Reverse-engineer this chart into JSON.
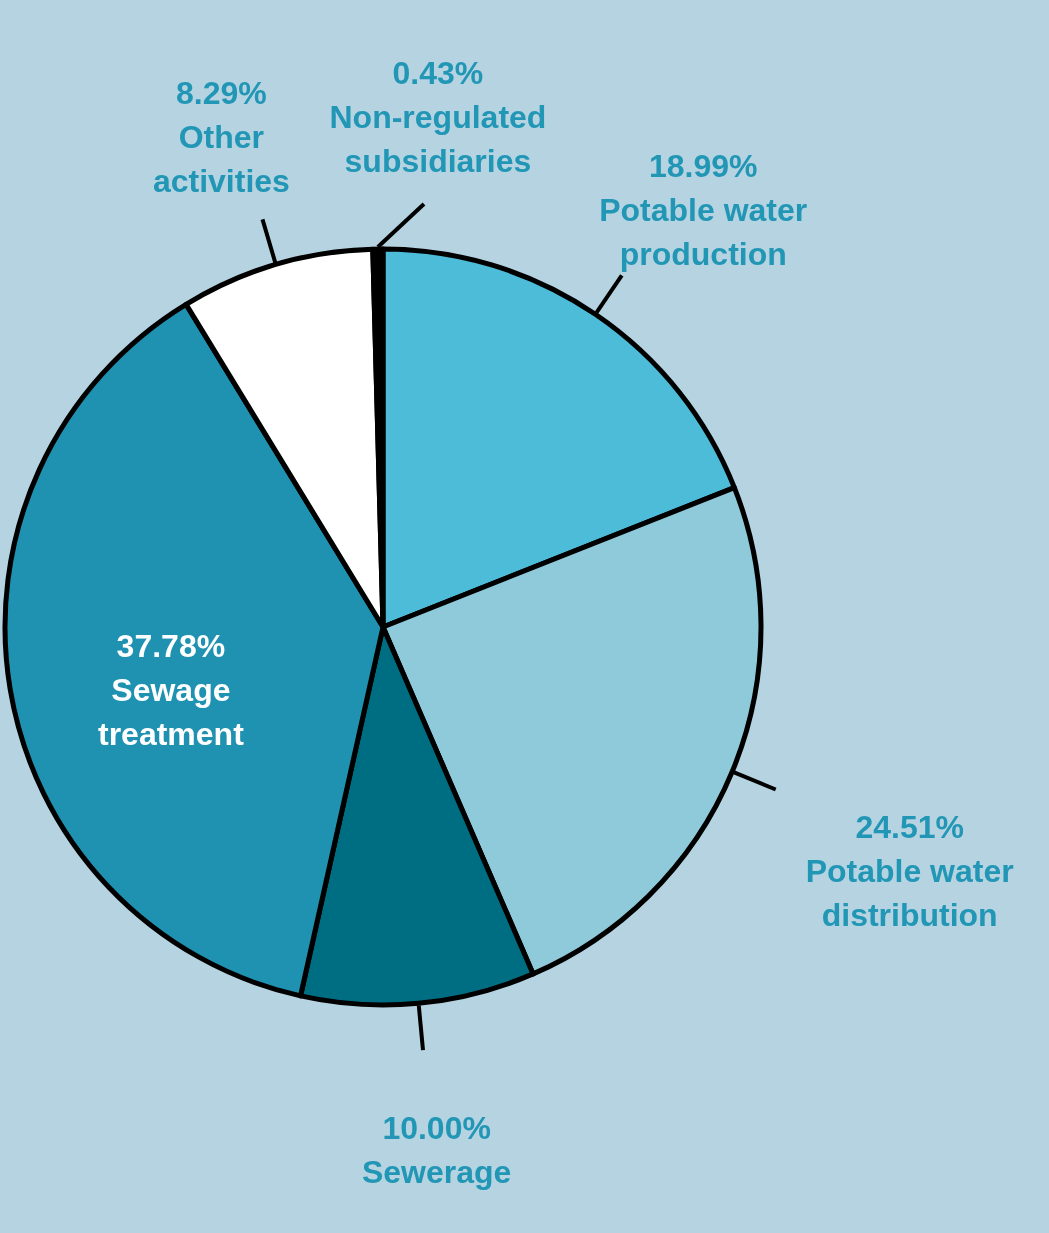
{
  "chart_data": {
    "type": "pie",
    "categories": [
      "Potable water production",
      "Potable water distribution",
      "Sewerage",
      "Sewage treatment",
      "Other activities",
      "Non-regulated subsidiaries"
    ],
    "values": [
      18.99,
      24.51,
      10.0,
      37.78,
      8.29,
      0.43
    ],
    "value_labels": [
      "18.99%",
      "24.51%",
      "10.00%",
      "37.78%",
      "8.29%",
      "0.43%"
    ],
    "colors": [
      "#4dbcd9",
      "#8fcadb",
      "#006e82",
      "#1f92b1",
      "#ffffff",
      "#000000"
    ]
  }
}
